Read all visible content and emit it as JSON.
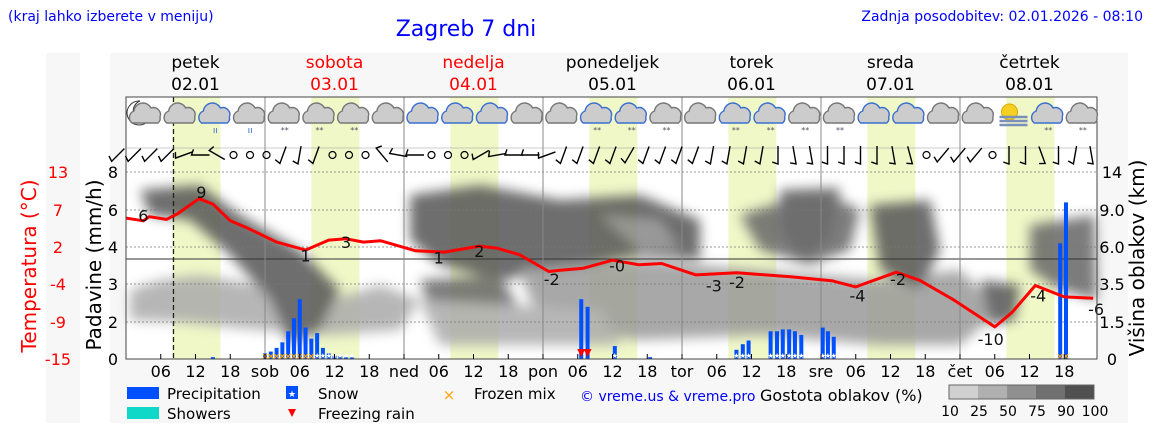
{
  "header": {
    "hint": "(kraj lahko izberete v meniju)",
    "title": "Zagreb 7 dni",
    "updated": "Zadnja posodobitev: 02.01.2026 - 08:10"
  },
  "days": [
    {
      "name": "petek",
      "date": "02.01",
      "weekend": false
    },
    {
      "name": "sobota",
      "date": "03.01",
      "weekend": true
    },
    {
      "name": "nedelja",
      "date": "04.01",
      "weekend": true
    },
    {
      "name": "ponedeljek",
      "date": "05.01",
      "weekend": false
    },
    {
      "name": "torek",
      "date": "06.01",
      "weekend": false
    },
    {
      "name": "sreda",
      "date": "07.01",
      "weekend": false
    },
    {
      "name": "četrtek",
      "date": "08.01",
      "weekend": false
    }
  ],
  "weather_icons": [
    "moon-cloud",
    "sun-cloud",
    "rain-cloud",
    "rain-cloud-gray",
    "snow-cloud",
    "sun-snow-cloud",
    "sun-snow-cloud",
    "cloud",
    "cloud-blue",
    "cloud-blue",
    "cloud-blue",
    "cloud",
    "cloud",
    "snow-cloud-blue",
    "snow-cloud-blue",
    "snow-cloud",
    "cloud",
    "snow-cloud-blue",
    "snow-cloud-blue",
    "snow-cloud",
    "snow-cloud",
    "cloud-blue",
    "cloud-blue",
    "cloud",
    "cloud",
    "fog-sun",
    "snow-cloud-blue",
    "snow-cloud"
  ],
  "wind_directions_deg": [
    225,
    225,
    225,
    225,
    250,
    270,
    300,
    0,
    0,
    0,
    200,
    190,
    200,
    0,
    0,
    0,
    320,
    280,
    270,
    0,
    0,
    0,
    240,
    260,
    270,
    270,
    250,
    200,
    200,
    200,
    200,
    210,
    200,
    200,
    200,
    200,
    190,
    190,
    190,
    190,
    180,
    170,
    170,
    180,
    180,
    180,
    180,
    170,
    165,
    0,
    220,
    220,
    220,
    0,
    180,
    180,
    160,
    180,
    190,
    170
  ],
  "chart_data": {
    "type": "line",
    "title": "Zagreb 7 dni",
    "x_unit": "hours since 02.01 00:00",
    "now_hour": 8.2,
    "daylight_hours": [
      8,
      16.3
    ],
    "x_ticks": [
      "06",
      "12",
      "18",
      "sob",
      "06",
      "12",
      "18",
      "ned",
      "06",
      "12",
      "18",
      "pon",
      "06",
      "12",
      "18",
      "tor",
      "06",
      "12",
      "18",
      "sre",
      "06",
      "12",
      "18",
      "čet",
      "06",
      "12",
      "18"
    ],
    "left_axis_precip": {
      "label": "Padavine (mm/h)",
      "ticks": [
        "0",
        "2",
        "3",
        "4",
        "6",
        "8"
      ],
      "values": [
        0,
        2,
        3,
        4,
        6,
        8
      ]
    },
    "left_axis_temp": {
      "label": "Temperatura (°C)",
      "ticks": [
        "-15",
        "-9",
        "-4",
        "2",
        "7",
        "13"
      ],
      "range": [
        -15,
        13
      ]
    },
    "right_axis_cloud": {
      "label": "Višina oblakov (km)",
      "ticks": [
        "0",
        "1.5",
        "3.5",
        "6.0",
        "9.0",
        "14"
      ]
    },
    "temperature": {
      "name": "Temperatura",
      "color": "#ff0000",
      "points": [
        [
          0,
          6.1
        ],
        [
          3,
          5.7
        ],
        [
          4,
          6.3
        ],
        [
          7,
          5.9
        ],
        [
          9,
          6.8
        ],
        [
          12.6,
          9
        ],
        [
          15,
          8.2
        ],
        [
          18,
          5.7
        ],
        [
          21,
          4.6
        ],
        [
          26,
          2.5
        ],
        [
          31,
          1.3
        ],
        [
          35,
          2.8
        ],
        [
          38,
          3.0
        ],
        [
          41,
          2.5
        ],
        [
          44,
          2.7
        ],
        [
          50,
          1.2
        ],
        [
          55,
          1.0
        ],
        [
          61,
          1.9
        ],
        [
          64,
          1.6
        ],
        [
          68,
          0.6
        ],
        [
          73,
          -1.9
        ],
        [
          75,
          -1.7
        ],
        [
          79,
          -1.4
        ],
        [
          84,
          -0.2
        ],
        [
          88.6,
          -0.9
        ],
        [
          92.5,
          -0.7
        ],
        [
          98.4,
          -2.4
        ],
        [
          105.5,
          -2.1
        ],
        [
          115,
          -2.7
        ],
        [
          122,
          -3.3
        ],
        [
          126,
          -4.2
        ],
        [
          133,
          -2.0
        ],
        [
          137,
          -3.2
        ],
        [
          143,
          -6.2
        ],
        [
          150,
          -10.2
        ],
        [
          153,
          -8
        ],
        [
          157,
          -4
        ],
        [
          162,
          -5.7
        ],
        [
          167,
          -5.9
        ]
      ]
    },
    "temperature_labels": [
      [
        3,
        "6"
      ],
      [
        13,
        "9"
      ],
      [
        31,
        "1"
      ],
      [
        38,
        "3"
      ],
      [
        54,
        "1"
      ],
      [
        61,
        "2"
      ],
      [
        73.5,
        "-2"
      ],
      [
        84.8,
        "-0"
      ],
      [
        101.5,
        "-3"
      ],
      [
        105.5,
        "-2"
      ],
      [
        126.3,
        "-4"
      ],
      [
        133.3,
        "-2"
      ],
      [
        149.3,
        "-10"
      ],
      [
        157.5,
        "-4"
      ],
      [
        167.5,
        "-6"
      ]
    ],
    "temperature_label_values": [
      6.5,
      10,
      0.5,
      2.5,
      0.2,
      1.2,
      -3,
      -1,
      -4,
      -3.5,
      -5.5,
      -3,
      -12,
      -5.5,
      -7.5
    ],
    "precipitation": [
      [
        15,
        0.1,
        "rain"
      ],
      [
        24,
        0.3,
        "mix"
      ],
      [
        25,
        0.4,
        "mix"
      ],
      [
        26,
        0.6,
        "mix"
      ],
      [
        27,
        0.9,
        "mix"
      ],
      [
        28,
        1.5,
        "mix"
      ],
      [
        29,
        2.1,
        "mix"
      ],
      [
        30,
        2.6,
        "mix"
      ],
      [
        31,
        1.7,
        "mix"
      ],
      [
        32,
        1.1,
        "mix"
      ],
      [
        33,
        1.4,
        "snow"
      ],
      [
        34,
        0.6,
        "snow"
      ],
      [
        35,
        0.3,
        "snow"
      ],
      [
        36,
        0.2,
        "snow"
      ],
      [
        37,
        0.15,
        "snow"
      ],
      [
        38,
        0.1,
        "snow"
      ],
      [
        39,
        0.1,
        "snow"
      ],
      [
        78.6,
        2.6,
        "freezing"
      ],
      [
        79.7,
        2.4,
        "freezing"
      ],
      [
        84.4,
        0.7,
        "snow"
      ],
      [
        90.5,
        0.1,
        "rain"
      ],
      [
        105.4,
        0.5,
        "snow"
      ],
      [
        106.5,
        0.8,
        "snow"
      ],
      [
        107.5,
        1.0,
        "snow"
      ],
      [
        111.3,
        1.5,
        "snow"
      ],
      [
        112.4,
        1.5,
        "snow"
      ],
      [
        113.4,
        1.6,
        "snow"
      ],
      [
        114.5,
        1.6,
        "snow"
      ],
      [
        115.5,
        1.5,
        "snow"
      ],
      [
        116.6,
        1.3,
        "snow"
      ],
      [
        120.3,
        1.7,
        "snow"
      ],
      [
        121.2,
        1.5,
        "snow"
      ],
      [
        122.2,
        1.2,
        "snow"
      ],
      [
        161.3,
        4.2,
        "mix"
      ],
      [
        162.3,
        6.4,
        "mix"
      ]
    ],
    "legend": {
      "precipitation": "Precipitation",
      "showers": "Showers",
      "snow": "Snow",
      "freezing_rain": "Freezing rain",
      "frozen_mix": "Frozen mix",
      "credit": "© vreme.us & vreme.pro",
      "cloud_density": "Gostota oblakov (%)",
      "cloud_scale": [
        "10",
        "25",
        "50",
        "75",
        "90",
        "100"
      ]
    },
    "colors": {
      "precip": "#0050ff",
      "showers": "#10d8c8",
      "freezing": "#ff0000",
      "mix": "#ffa500",
      "title": "#0000ff",
      "day_band": "#f0f8c8"
    }
  }
}
